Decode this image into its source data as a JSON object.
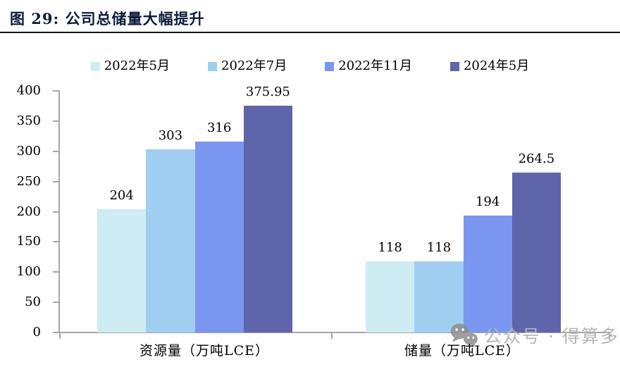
{
  "figure": {
    "title": "图 29: 公司总储量大幅提升",
    "watermark_text": "公众号 · 得算多"
  },
  "chart_data": {
    "type": "bar",
    "title": "图 29: 公司总储量大幅提升",
    "categories": [
      "资源量（万吨LCE）",
      "储量（万吨LCE）"
    ],
    "series": [
      {
        "name": "2022年5月",
        "color": "#ceecf4",
        "values": [
          204,
          118
        ]
      },
      {
        "name": "2022年7月",
        "color": "#a0cef0",
        "values": [
          303,
          118
        ]
      },
      {
        "name": "2022年11月",
        "color": "#7b96ee",
        "values": [
          316,
          194
        ]
      },
      {
        "name": "2024年5月",
        "color": "#5f65ab",
        "values": [
          375.95,
          264.5
        ]
      }
    ],
    "value_labels": [
      [
        "204",
        "303",
        "316",
        "375.95"
      ],
      [
        "118",
        "118",
        "194",
        "264.5"
      ]
    ],
    "ylim": [
      0,
      400
    ],
    "ytick_step": 50,
    "yticks": [
      0,
      50,
      100,
      150,
      200,
      250,
      300,
      350,
      400
    ],
    "grid": false,
    "legend_position": "top-center",
    "xlabel": "",
    "ylabel": ""
  },
  "colors": {
    "axis": "#a6a6a6",
    "label_text": "#000000",
    "title_text": "#0d1a3a",
    "title_rule": "#15151e",
    "watermark_text": "#b6b6b6",
    "watermark_icon": "#8e8e8e"
  }
}
